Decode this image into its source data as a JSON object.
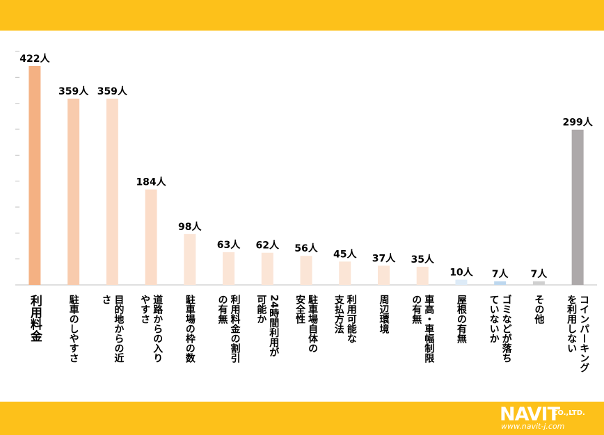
{
  "theme": {
    "band_color": "#FDC11A",
    "axis_color": "#BFBFBF"
  },
  "brand": {
    "name": "NAVIT",
    "suffix": "CO.,LTD.",
    "url": "www.navit-j.com"
  },
  "chart_data": {
    "type": "bar",
    "grid": false,
    "ylim": [
      0,
      450
    ],
    "categories": [
      "利用料金",
      "駐車のしやすさ",
      "目的地からの近さ",
      "道路からの入りやすさ",
      "駐車場の枠の数",
      "利用料金の割引の有無",
      "24時間利用が可能か",
      "駐車場自体の安全性",
      "利用可能な支払方法",
      "周辺環境",
      "車高・車幅制限の有無",
      "屋根の有無",
      "ゴミなどが落ちていないか",
      "その他",
      "コインパーキングを利用しない"
    ],
    "category_lines": [
      [
        "利用料金"
      ],
      [
        "駐車のしやすさ"
      ],
      [
        "目的地からの近",
        "さ"
      ],
      [
        "道路からの入り",
        "やすさ"
      ],
      [
        "駐車場の枠の数"
      ],
      [
        "利用料金の割引",
        "の有無"
      ],
      [
        "24時間利用が",
        "可能か"
      ],
      [
        "駐車場自体の",
        "安全性"
      ],
      [
        "利用可能な",
        "支払方法"
      ],
      [
        "周辺環境"
      ],
      [
        "車高・車幅制限",
        "の有無"
      ],
      [
        "屋根の有無"
      ],
      [
        "ゴミなどが落ち",
        "ていないか"
      ],
      [
        "その他"
      ],
      [
        "コインパーキング",
        "を利用しない"
      ]
    ],
    "values": [
      422,
      359,
      359,
      184,
      98,
      63,
      62,
      56,
      45,
      37,
      35,
      10,
      7,
      7,
      299
    ],
    "unit": "人",
    "bar_colors": [
      "#F4B183",
      "#F8CBAD",
      "#FBDCC8",
      "#FBDCC8",
      "#FBE5D6",
      "#FBE5D6",
      "#FBE5D6",
      "#FBE5D6",
      "#FBE5D6",
      "#FBE5D6",
      "#FBE5D6",
      "#DDEBF7",
      "#BDD7EE",
      "#D0D0D0",
      "#ADA9AA"
    ]
  }
}
